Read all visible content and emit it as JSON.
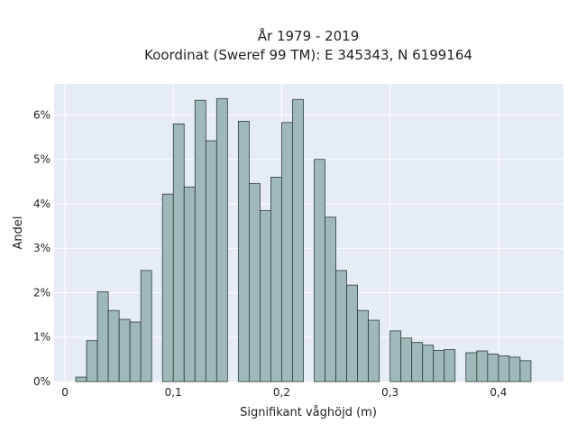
{
  "chart_data": {
    "type": "bar",
    "title": "År 1979 - 2019",
    "subtitle": "Koordinat (Sweref 99 TM): E 345343, N 6199164",
    "xlabel": "Signifikant våghöjd (m)",
    "ylabel": "Andel",
    "xlim": [
      -0.01,
      0.46
    ],
    "ylim": [
      0,
      6.7
    ],
    "x_ticks": [
      0,
      0.1,
      0.2,
      0.3,
      0.4
    ],
    "x_tick_labels": [
      "0",
      "0,1",
      "0,2",
      "0,3",
      "0,4"
    ],
    "y_ticks": [
      0,
      1,
      2,
      3,
      4,
      5,
      6
    ],
    "y_tick_labels": [
      "0%",
      "1%",
      "2%",
      "3%",
      "4%",
      "5%",
      "6%"
    ],
    "grid": true,
    "bin_width": 0.01,
    "bin_start": [
      0.01,
      0.02,
      0.03,
      0.04,
      0.05,
      0.06,
      0.07,
      0.08,
      0.09,
      0.1,
      0.11,
      0.12,
      0.13,
      0.14,
      0.15,
      0.16,
      0.17,
      0.18,
      0.19,
      0.2,
      0.21,
      0.22,
      0.23,
      0.24,
      0.25,
      0.26,
      0.27,
      0.28,
      0.29,
      0.3,
      0.31,
      0.32,
      0.33,
      0.34,
      0.35,
      0.36,
      0.37,
      0.38,
      0.39,
      0.4,
      0.41,
      0.42,
      0.43
    ],
    "values": [
      0.1,
      0.92,
      2.02,
      1.6,
      1.4,
      1.34,
      2.5,
      0,
      4.22,
      5.8,
      4.38,
      6.33,
      5.42,
      6.37,
      0,
      5.86,
      4.46,
      3.85,
      4.6,
      5.83,
      6.35,
      0,
      5.0,
      3.7,
      2.5,
      2.17,
      1.6,
      1.38,
      0,
      1.14,
      0.98,
      0.88,
      0.82,
      0.7,
      0.72,
      0,
      0.65,
      0.69,
      0.62,
      0.58,
      0.55,
      0.47,
      0
    ],
    "colors": {
      "bar_fill": "#9fb9b8",
      "bar_stroke": "#2f3b3b",
      "plot_bg": "#e5ecf6",
      "grid": "#ffffff"
    }
  }
}
